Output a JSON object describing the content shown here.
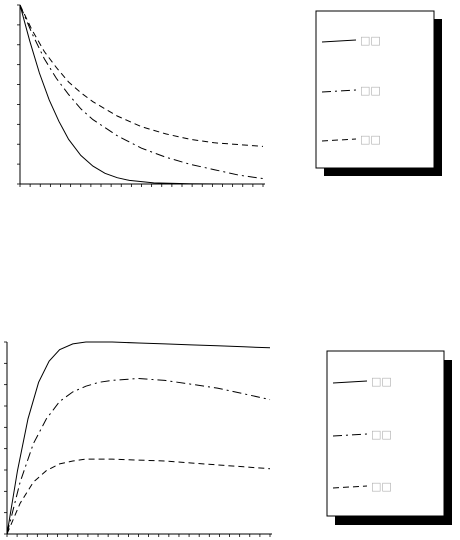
{
  "chart_data": [
    {
      "type": "line",
      "title": "",
      "xlabel": "",
      "ylabel": "",
      "x_tick_count": 24,
      "y_tick_count": 9,
      "legend": {
        "placement": "right",
        "shadow": true,
        "labels": [
          "□□",
          "□□",
          "□□"
        ]
      },
      "series": [
        {
          "style": "solid",
          "x": [
            0,
            0.04,
            0.08,
            0.12,
            0.16,
            0.2,
            0.25,
            0.3,
            0.35,
            0.4,
            0.45,
            0.55,
            0.7,
            0.85,
            1.0
          ],
          "y": [
            1.0,
            0.8,
            0.62,
            0.47,
            0.35,
            0.25,
            0.16,
            0.1,
            0.06,
            0.035,
            0.02,
            0.006,
            0.001,
            0,
            0
          ]
        },
        {
          "style": "dash-dot",
          "x": [
            0,
            0.05,
            0.1,
            0.15,
            0.2,
            0.25,
            0.3,
            0.4,
            0.5,
            0.6,
            0.7,
            0.8,
            0.9,
            1.0
          ],
          "y": [
            1.0,
            0.84,
            0.7,
            0.59,
            0.5,
            0.42,
            0.36,
            0.27,
            0.2,
            0.15,
            0.11,
            0.08,
            0.05,
            0.03
          ]
        },
        {
          "style": "dashed",
          "x": [
            0,
            0.05,
            0.1,
            0.15,
            0.2,
            0.25,
            0.3,
            0.4,
            0.5,
            0.6,
            0.7,
            0.8,
            0.9,
            1.0
          ],
          "y": [
            1.0,
            0.86,
            0.74,
            0.65,
            0.57,
            0.51,
            0.46,
            0.38,
            0.32,
            0.28,
            0.25,
            0.23,
            0.22,
            0.21
          ]
        }
      ]
    },
    {
      "type": "line",
      "title": "",
      "xlabel": "",
      "ylabel": "",
      "x_tick_count": 26,
      "y_tick_count": 9,
      "legend": {
        "placement": "right",
        "shadow": true,
        "labels": [
          "□□",
          "□□",
          "□□"
        ]
      },
      "series": [
        {
          "style": "solid",
          "x": [
            0,
            0.04,
            0.08,
            0.12,
            0.16,
            0.2,
            0.25,
            0.3,
            0.35,
            0.4,
            0.5,
            0.6,
            0.7,
            0.8,
            0.9,
            1.0
          ],
          "y": [
            0,
            0.33,
            0.6,
            0.79,
            0.9,
            0.96,
            0.99,
            1.0,
            1.0,
            1.0,
            0.995,
            0.99,
            0.985,
            0.98,
            0.975,
            0.97
          ]
        },
        {
          "style": "dash-dot",
          "x": [
            0,
            0.05,
            0.1,
            0.15,
            0.2,
            0.25,
            0.3,
            0.35,
            0.4,
            0.5,
            0.6,
            0.7,
            0.8,
            0.9,
            1.0
          ],
          "y": [
            0,
            0.27,
            0.47,
            0.6,
            0.69,
            0.74,
            0.77,
            0.79,
            0.8,
            0.81,
            0.8,
            0.78,
            0.76,
            0.73,
            0.7
          ]
        },
        {
          "style": "dashed",
          "x": [
            0,
            0.05,
            0.1,
            0.15,
            0.2,
            0.25,
            0.3,
            0.35,
            0.4,
            0.5,
            0.6,
            0.7,
            0.8,
            0.9,
            1.0
          ],
          "y": [
            0,
            0.16,
            0.27,
            0.33,
            0.365,
            0.38,
            0.39,
            0.39,
            0.39,
            0.385,
            0.38,
            0.37,
            0.36,
            0.35,
            0.34
          ]
        }
      ]
    }
  ]
}
